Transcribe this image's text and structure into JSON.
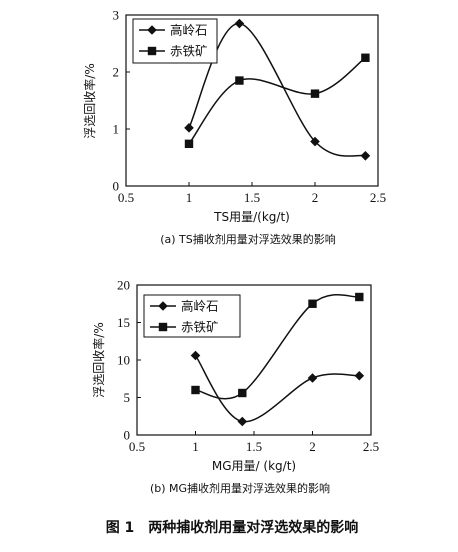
{
  "chart_data": [
    {
      "type": "line",
      "x": [
        1.0,
        1.4,
        2.0,
        2.4
      ],
      "series": [
        {
          "name": "高岭石",
          "marker": "diamond",
          "values": [
            1.02,
            2.85,
            0.78,
            0.53
          ]
        },
        {
          "name": "赤铁矿",
          "marker": "square",
          "values": [
            0.74,
            1.85,
            1.62,
            2.25
          ]
        }
      ],
      "xlim": [
        0.5,
        2.5
      ],
      "ylim": [
        0,
        3
      ],
      "xticks": [
        "0.5",
        "1",
        "1.5",
        "2",
        "2.5"
      ],
      "yticks": [
        "0",
        "1",
        "2",
        "3"
      ],
      "xlabel": "TS用量/(kg/t)",
      "ylabel": "浮选回收率/%",
      "caption": "(a) TS捕收剂用量对浮选效果的影响",
      "legend_position": "top-left",
      "grid": false
    },
    {
      "type": "line",
      "x": [
        1.0,
        1.4,
        2.0,
        2.4
      ],
      "series": [
        {
          "name": "高岭石",
          "marker": "diamond",
          "values": [
            10.6,
            1.8,
            7.6,
            7.9
          ]
        },
        {
          "name": "赤铁矿",
          "marker": "square",
          "values": [
            6.0,
            5.6,
            17.5,
            18.4
          ]
        }
      ],
      "xlim": [
        0.5,
        2.5
      ],
      "ylim": [
        0,
        20
      ],
      "xticks": [
        "0.5",
        "1",
        "1.5",
        "2",
        "2.5"
      ],
      "yticks": [
        "0",
        "5",
        "10",
        "15",
        "20"
      ],
      "xlabel": "MG用量/ (kg/t)",
      "ylabel": "浮选回收率/%",
      "caption": "(b) MG捕收剂用量对浮选效果的影响",
      "legend_position": "top-left",
      "grid": false
    }
  ],
  "figure_caption": "图 1　两种捕收剂用量对浮选效果的影响"
}
